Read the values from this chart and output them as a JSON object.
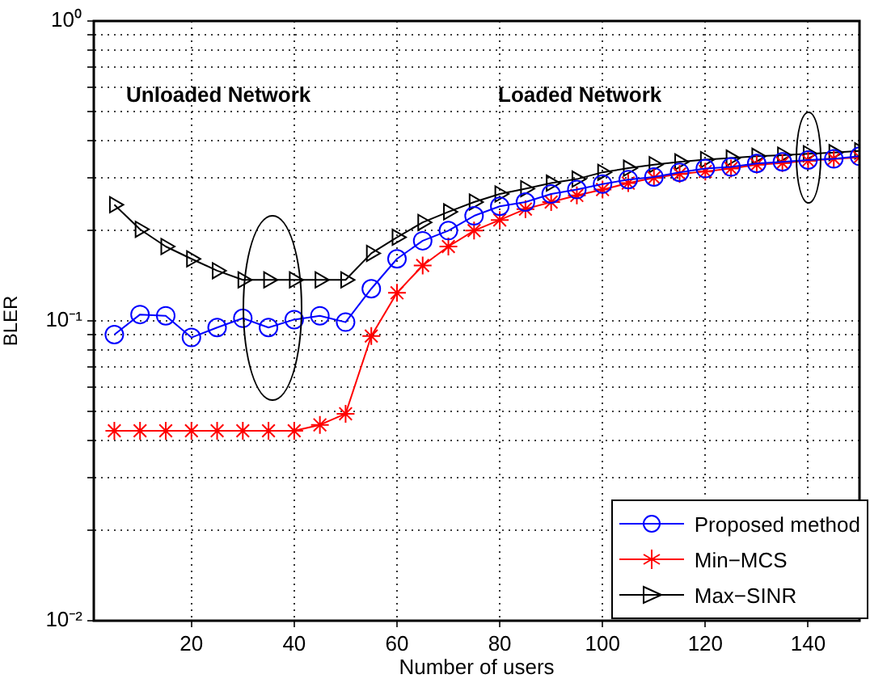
{
  "chart_data": {
    "type": "line",
    "xlabel": "Number of users",
    "ylabel": "BLER",
    "annotations": [
      "Unloaded Network",
      "Loaded Network"
    ],
    "x": [
      5,
      10,
      15,
      20,
      25,
      30,
      35,
      40,
      45,
      50,
      55,
      60,
      65,
      70,
      75,
      80,
      85,
      90,
      95,
      100,
      105,
      110,
      115,
      120,
      125,
      130,
      135,
      140,
      145,
      150
    ],
    "series": [
      {
        "name": "Proposed method",
        "color": "#0000ff",
        "marker": "circle",
        "values": [
          0.09,
          0.105,
          0.104,
          0.088,
          0.095,
          0.102,
          0.095,
          0.101,
          0.104,
          0.099,
          0.128,
          0.161,
          0.185,
          0.2,
          0.224,
          0.241,
          0.249,
          0.265,
          0.274,
          0.286,
          0.296,
          0.302,
          0.313,
          0.322,
          0.326,
          0.335,
          0.339,
          0.344,
          0.347,
          0.354
        ]
      },
      {
        "name": "Min−MCS",
        "color": "#ff0000",
        "marker": "cross",
        "values": [
          0.043,
          0.043,
          0.043,
          0.043,
          0.043,
          0.043,
          0.043,
          0.043,
          0.045,
          0.049,
          0.089,
          0.124,
          0.153,
          0.177,
          0.2,
          0.217,
          0.236,
          0.249,
          0.262,
          0.274,
          0.288,
          0.3,
          0.309,
          0.315,
          0.322,
          0.332,
          0.336,
          0.342,
          0.347,
          0.351
        ]
      },
      {
        "name": "Max−SINR",
        "color": "#000000",
        "marker": "triangle",
        "values": [
          0.244,
          0.202,
          0.177,
          0.161,
          0.147,
          0.137,
          0.137,
          0.137,
          0.137,
          0.137,
          0.168,
          0.19,
          0.213,
          0.231,
          0.249,
          0.265,
          0.276,
          0.288,
          0.297,
          0.313,
          0.323,
          0.332,
          0.339,
          0.345,
          0.349,
          0.354,
          0.357,
          0.361,
          0.364,
          0.369
        ]
      }
    ],
    "log": "y",
    "xlim": [
      1,
      150
    ],
    "xticks": [
      20,
      40,
      60,
      80,
      100,
      120,
      140
    ],
    "ylim": [
      0.01,
      1
    ],
    "yticks": [
      {
        "value": 0.01,
        "label": "10⁻²"
      },
      {
        "value": 0.02,
        "label": null
      },
      {
        "value": 0.03,
        "label": null
      },
      {
        "value": 0.04,
        "label": null
      },
      {
        "value": 0.05,
        "label": null
      },
      {
        "value": 0.06,
        "label": null
      },
      {
        "value": 0.07,
        "label": null
      },
      {
        "value": 0.08,
        "label": null
      },
      {
        "value": 0.09,
        "label": null
      },
      {
        "value": 0.1,
        "label": "10⁻¹"
      },
      {
        "value": 0.2,
        "label": null
      },
      {
        "value": 0.3,
        "label": null
      },
      {
        "value": 0.4,
        "label": null
      },
      {
        "value": 0.5,
        "label": null
      },
      {
        "value": 0.6,
        "label": null
      },
      {
        "value": 0.7,
        "label": null
      },
      {
        "value": 0.8,
        "label": null
      },
      {
        "value": 0.9,
        "label": null
      },
      {
        "value": 1,
        "label": "10⁰"
      }
    ],
    "grid": true,
    "legend": "bottom right",
    "line_style": "solid"
  }
}
